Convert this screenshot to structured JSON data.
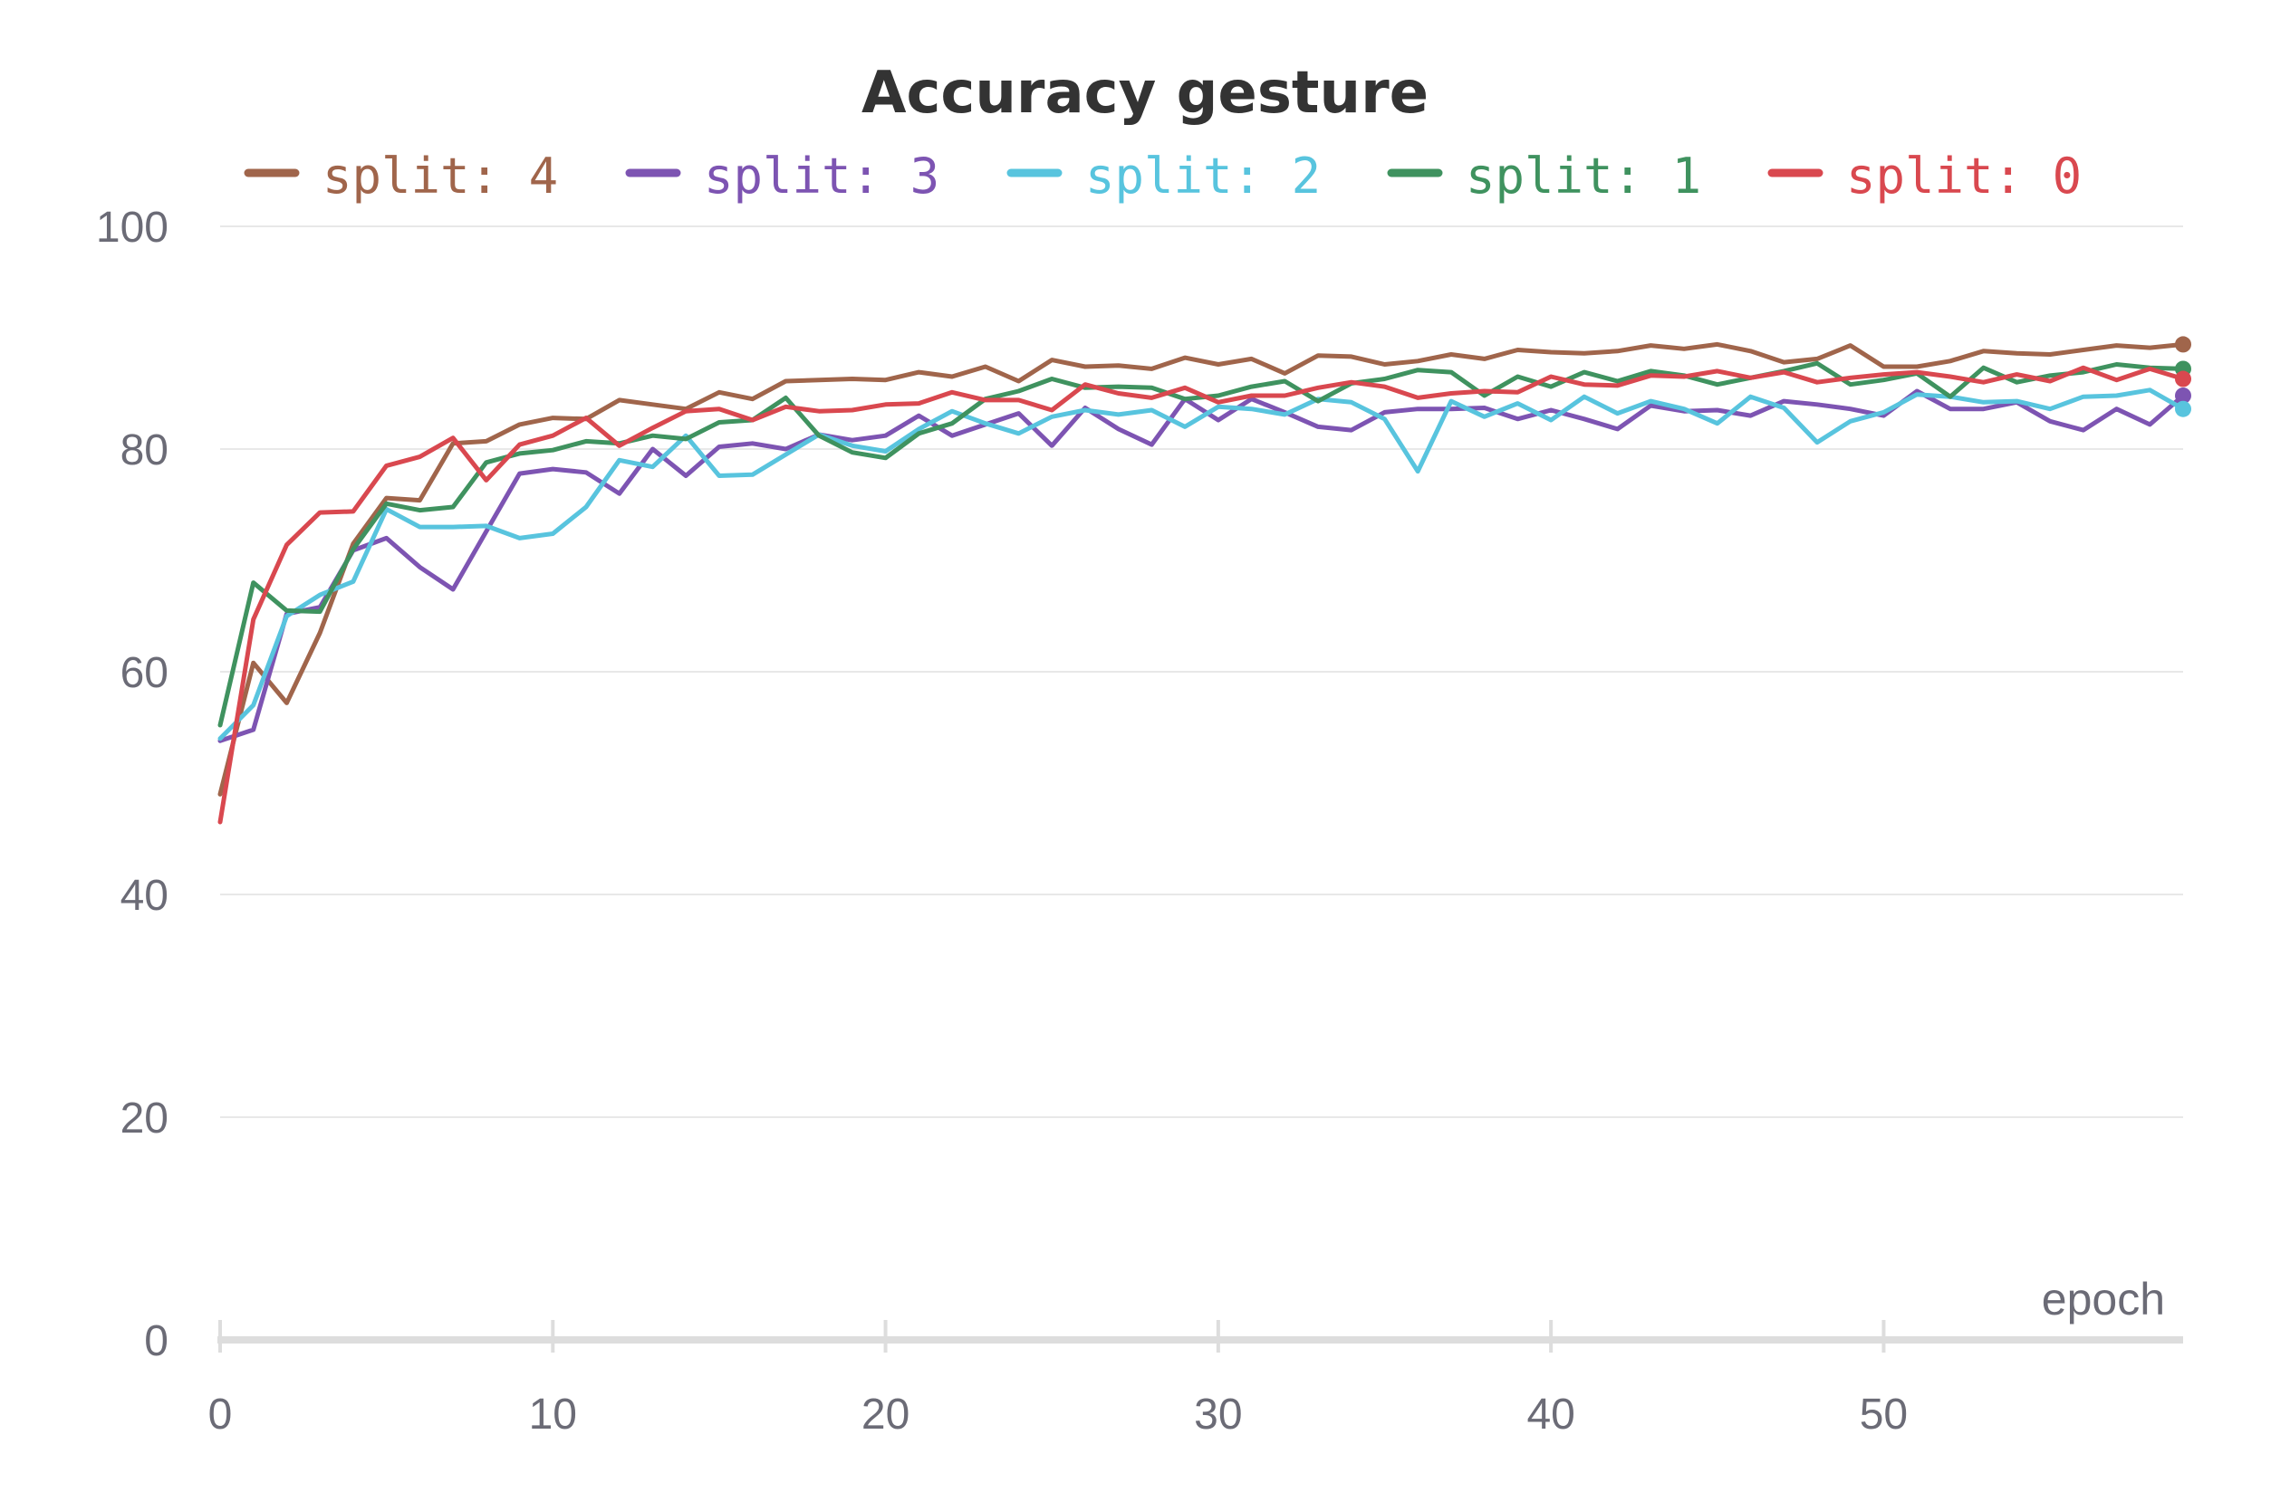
{
  "chart_data": {
    "type": "line",
    "title": "Accuracy gesture",
    "xlabel": "epoch",
    "ylabel": "",
    "xlim": [
      0,
      59
    ],
    "ylim": [
      0,
      100
    ],
    "x_ticks": [
      0,
      10,
      20,
      30,
      40,
      50
    ],
    "y_ticks": [
      0,
      20,
      40,
      60,
      80,
      100
    ],
    "x_tick_labels": [
      "0",
      "10",
      "20",
      "30",
      "40",
      "50"
    ],
    "y_tick_labels": [
      "0",
      "20",
      "40",
      "60",
      "80",
      "100"
    ],
    "grid": true,
    "legend_position": "top",
    "x": [
      0,
      1,
      2,
      3,
      4,
      5,
      6,
      7,
      8,
      9,
      10,
      11,
      12,
      13,
      14,
      15,
      16,
      17,
      18,
      19,
      20,
      21,
      22,
      23,
      24,
      25,
      26,
      27,
      28,
      29,
      30,
      31,
      32,
      33,
      34,
      35,
      36,
      37,
      38,
      39,
      40,
      41,
      42,
      43,
      44,
      45,
      46,
      47,
      48,
      49,
      50,
      51,
      52,
      53,
      54,
      55,
      56,
      57,
      58,
      59
    ],
    "series": [
      {
        "name": "split: 4",
        "color": "#a0654b",
        "values": [
          49.0,
          60.8,
          57.2,
          63.5,
          71.5,
          75.6,
          75.4,
          80.5,
          80.7,
          82.2,
          82.8,
          82.7,
          84.4,
          84.0,
          83.6,
          85.1,
          84.5,
          86.1,
          86.2,
          86.3,
          86.2,
          86.9,
          86.5,
          87.4,
          86.1,
          88.0,
          87.4,
          87.5,
          87.2,
          88.2,
          87.6,
          88.1,
          86.8,
          88.4,
          88.3,
          87.6,
          87.9,
          88.5,
          88.1,
          88.9,
          88.7,
          88.6,
          88.8,
          89.3,
          89.0,
          89.4,
          88.8,
          87.8,
          88.1,
          89.3,
          87.4,
          87.4,
          87.9,
          88.8,
          88.6,
          88.5,
          88.9,
          89.3,
          89.1,
          89.4
        ]
      },
      {
        "name": "split: 3",
        "color": "#7d54b2",
        "values": [
          53.8,
          54.8,
          65.2,
          65.8,
          70.9,
          72.0,
          69.4,
          67.4,
          72.6,
          77.8,
          78.2,
          77.9,
          76.0,
          80.0,
          77.6,
          80.2,
          80.5,
          80.0,
          81.3,
          80.8,
          81.2,
          83.0,
          81.2,
          82.2,
          83.2,
          80.3,
          83.7,
          81.8,
          80.4,
          84.5,
          82.6,
          84.5,
          83.3,
          82.0,
          81.7,
          83.3,
          83.6,
          83.6,
          83.7,
          82.7,
          83.5,
          82.7,
          81.8,
          83.9,
          83.4,
          83.5,
          83.0,
          84.3,
          84.0,
          83.6,
          83.0,
          85.2,
          83.6,
          83.6,
          84.2,
          82.5,
          81.7,
          83.6,
          82.2,
          84.8
        ]
      },
      {
        "name": "split: 2",
        "color": "#58c4de",
        "values": [
          54.0,
          57.0,
          65.0,
          66.9,
          68.1,
          74.6,
          73.0,
          73.0,
          73.1,
          72.0,
          72.4,
          74.8,
          79.0,
          78.4,
          81.2,
          77.6,
          77.7,
          79.5,
          81.3,
          80.3,
          79.8,
          81.8,
          83.4,
          82.3,
          81.4,
          82.9,
          83.5,
          83.1,
          83.5,
          82.0,
          83.8,
          83.6,
          83.1,
          84.5,
          84.2,
          82.7,
          78.0,
          84.3,
          82.9,
          84.1,
          82.6,
          84.7,
          83.2,
          84.3,
          83.6,
          82.3,
          84.7,
          83.7,
          80.6,
          82.5,
          83.3,
          84.9,
          84.7,
          84.2,
          84.3,
          83.6,
          84.7,
          84.8,
          85.3,
          83.6
        ]
      },
      {
        "name": "split: 1",
        "color": "#3f925f",
        "values": [
          55.2,
          68.0,
          65.5,
          65.4,
          71.0,
          75.1,
          74.5,
          74.8,
          78.8,
          79.6,
          79.9,
          80.7,
          80.5,
          81.2,
          80.9,
          82.4,
          82.6,
          84.6,
          81.2,
          79.7,
          79.2,
          81.4,
          82.3,
          84.5,
          85.2,
          86.3,
          85.5,
          85.6,
          85.5,
          84.5,
          84.8,
          85.6,
          86.1,
          84.3,
          85.9,
          86.3,
          87.1,
          86.9,
          84.8,
          86.5,
          85.6,
          86.9,
          86.1,
          87.0,
          86.6,
          85.8,
          86.4,
          87.0,
          87.7,
          85.8,
          86.2,
          86.8,
          84.7,
          87.3,
          86.0,
          86.6,
          86.9,
          87.6,
          87.3,
          87.2
        ]
      },
      {
        "name": "split: 0",
        "color": "#d9484f",
        "values": [
          46.5,
          64.7,
          71.4,
          74.3,
          74.4,
          78.5,
          79.3,
          81.0,
          77.2,
          80.4,
          81.2,
          82.8,
          80.3,
          81.9,
          83.4,
          83.6,
          82.6,
          83.8,
          83.4,
          83.5,
          84.0,
          84.1,
          85.1,
          84.4,
          84.4,
          83.5,
          85.8,
          85.0,
          84.6,
          85.5,
          84.2,
          84.8,
          84.8,
          85.5,
          86.0,
          85.6,
          84.6,
          85.0,
          85.2,
          85.1,
          86.5,
          85.8,
          85.7,
          86.6,
          86.5,
          87.0,
          86.4,
          86.9,
          86.0,
          86.4,
          86.7,
          86.9,
          86.5,
          86.0,
          86.7,
          86.1,
          87.3,
          86.2,
          87.2,
          86.3
        ]
      }
    ]
  }
}
